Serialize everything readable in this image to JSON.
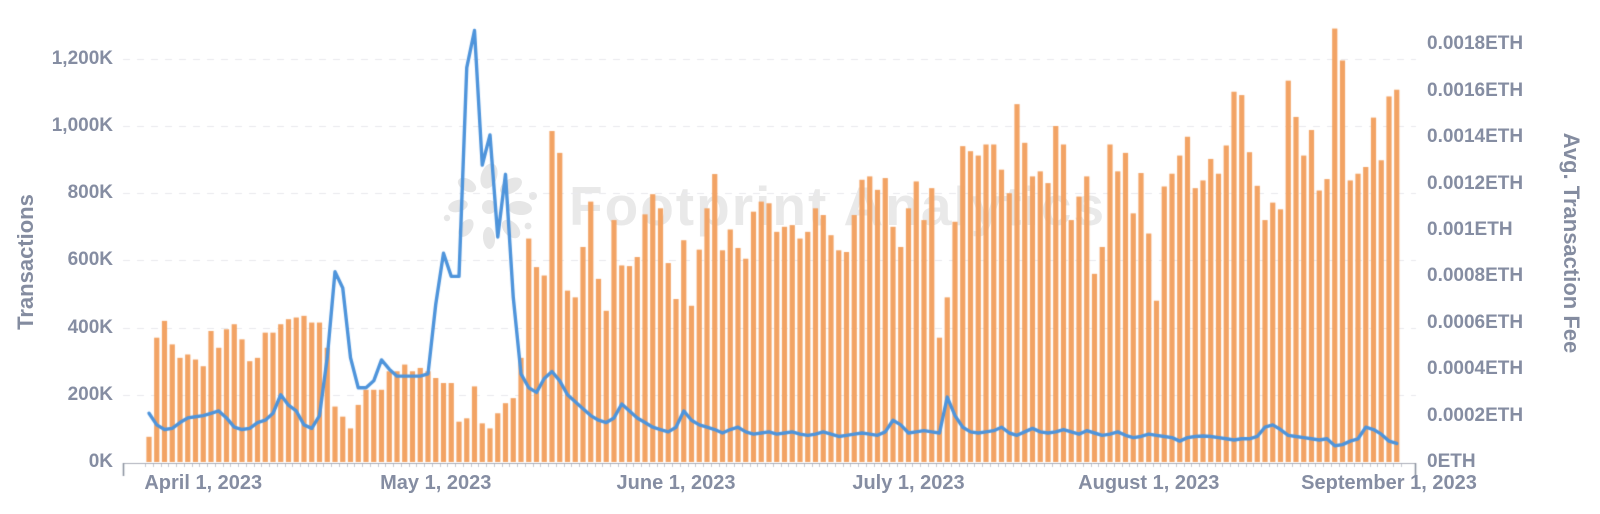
{
  "watermark": {
    "text": "Footprint Analytics"
  },
  "left_axis": {
    "title": "Transactions",
    "unit": "K",
    "tick_labels": [
      "0K",
      "200K",
      "400K",
      "600K",
      "800K",
      "1,000K",
      "1,200K"
    ],
    "range_k": [
      0,
      1200
    ]
  },
  "right_axis": {
    "title": "Avg. Transaction Fee",
    "unit": "ETH",
    "tick_labels": [
      "0ETH",
      "0.0002ETH",
      "0.0004ETH",
      "0.0006ETH",
      "0.0008ETH",
      "0.001ETH",
      "0.0012ETH",
      "0.0014ETH",
      "0.0016ETH",
      "0.0018ETH"
    ],
    "range_eth": [
      0,
      0.0018
    ]
  },
  "x_axis": {
    "tick_labels": [
      "April 1, 2023",
      "May 1, 2023",
      "June 1, 2023",
      "July 1, 2023",
      "August 1, 2023",
      "September 1, 2023"
    ],
    "tick_point_indices": [
      7,
      37,
      68,
      98,
      129,
      160
    ]
  },
  "colors": {
    "bar": "#F2A364",
    "line": "#4E94DB",
    "axis_text": "#858DA2",
    "grid": "#E8E9ED",
    "axis_line": "#ABAEB8",
    "axis_end_tick": "#8C93A0",
    "watermark": "#E9E9E9",
    "background": "#FFFFFF"
  },
  "chart_data": {
    "type": "bar",
    "title": "",
    "x_granularity": "daily",
    "x_range_label": "late March 2023 through early September 2023",
    "grid": "horizontal dashed lines at left-axis ticks",
    "legend": "none visible",
    "series": [
      {
        "name": "Transactions",
        "type": "bar",
        "y_axis": "left",
        "unit": "thousand transactions",
        "values": [
          75,
          370,
          420,
          350,
          310,
          320,
          305,
          285,
          390,
          340,
          395,
          410,
          365,
          300,
          310,
          385,
          385,
          410,
          425,
          430,
          435,
          415,
          415,
          340,
          165,
          135,
          100,
          170,
          215,
          215,
          215,
          270,
          270,
          290,
          270,
          280,
          270,
          250,
          235,
          235,
          120,
          130,
          225,
          115,
          100,
          145,
          175,
          190,
          310,
          665,
          580,
          555,
          985,
          920,
          510,
          490,
          640,
          775,
          545,
          450,
          720,
          585,
          583,
          610,
          737,
          797,
          755,
          592,
          485,
          660,
          465,
          632,
          755,
          857,
          630,
          692,
          637,
          605,
          745,
          775,
          770,
          685,
          700,
          705,
          665,
          685,
          755,
          735,
          675,
          630,
          625,
          735,
          840,
          850,
          810,
          845,
          700,
          640,
          755,
          835,
          720,
          815,
          370,
          490,
          715,
          940,
          925,
          912,
          945,
          945,
          870,
          800,
          1065,
          950,
          850,
          865,
          830,
          1000,
          945,
          720,
          790,
          850,
          560,
          640,
          945,
          865,
          920,
          740,
          860,
          680,
          480,
          820,
          858,
          912,
          968,
          815,
          838,
          902,
          858,
          942,
          1102,
          1092,
          922,
          822,
          720,
          772,
          752,
          1135,
          1027,
          912,
          988,
          808,
          842,
          1290,
          1195,
          838,
          858,
          878,
          1025,
          898,
          1088,
          1108
        ]
      },
      {
        "name": "Avg. Transaction Fee",
        "type": "line",
        "y_axis": "right",
        "unit": "ETH",
        "values": [
          0.00021,
          0.00016,
          0.00014,
          0.000145,
          0.00017,
          0.00019,
          0.000195,
          0.0002,
          0.00021,
          0.00022,
          0.00019,
          0.00015,
          0.00014,
          0.000145,
          0.00017,
          0.00018,
          0.00021,
          0.00029,
          0.000245,
          0.00022,
          0.00016,
          0.000145,
          0.0002,
          0.00045,
          0.00082,
          0.00075,
          0.00045,
          0.00032,
          0.00032,
          0.00035,
          0.00044,
          0.0004,
          0.00037,
          0.00037,
          0.00037,
          0.00037,
          0.00038,
          0.00068,
          0.0009,
          0.0008,
          0.0008,
          0.0017,
          0.00186,
          0.00128,
          0.00141,
          0.00097,
          0.00124,
          0.00071,
          0.00038,
          0.00032,
          0.0003,
          0.00036,
          0.00039,
          0.00035,
          0.00029,
          0.00026,
          0.00023,
          0.0002,
          0.00018,
          0.00017,
          0.00019,
          0.00025,
          0.00022,
          0.00019,
          0.00017,
          0.00015,
          0.00014,
          0.00013,
          0.00015,
          0.00022,
          0.00018,
          0.00016,
          0.00015,
          0.00014,
          0.000125,
          0.00014,
          0.00015,
          0.00013,
          0.00012,
          0.000125,
          0.00013,
          0.00012,
          0.000125,
          0.00013,
          0.00012,
          0.000115,
          0.00012,
          0.00013,
          0.00012,
          0.00011,
          0.000115,
          0.00012,
          0.000125,
          0.00012,
          0.000115,
          0.00013,
          0.00018,
          0.00016,
          0.000125,
          0.00013,
          0.000135,
          0.00013,
          0.000125,
          0.00028,
          0.0002,
          0.00015,
          0.00013,
          0.000125,
          0.00013,
          0.000135,
          0.00015,
          0.000125,
          0.000115,
          0.00013,
          0.000145,
          0.00013,
          0.000125,
          0.00013,
          0.00014,
          0.00013,
          0.00012,
          0.000135,
          0.000125,
          0.000115,
          0.00012,
          0.00013,
          0.000115,
          0.000105,
          0.00011,
          0.00012,
          0.000115,
          0.00011,
          0.000105,
          9e-05,
          0.000105,
          0.00011,
          0.000112,
          0.00011,
          0.000105,
          0.0001,
          9.5e-05,
          0.0001,
          0.0001,
          0.00011,
          0.00015,
          0.00016,
          0.00014,
          0.000115,
          0.00011,
          0.000105,
          0.0001,
          9.5e-05,
          0.0001,
          7e-05,
          7.5e-05,
          9e-05,
          0.0001,
          0.00015,
          0.00014,
          0.00012,
          9e-05,
          8e-05
        ]
      }
    ]
  }
}
